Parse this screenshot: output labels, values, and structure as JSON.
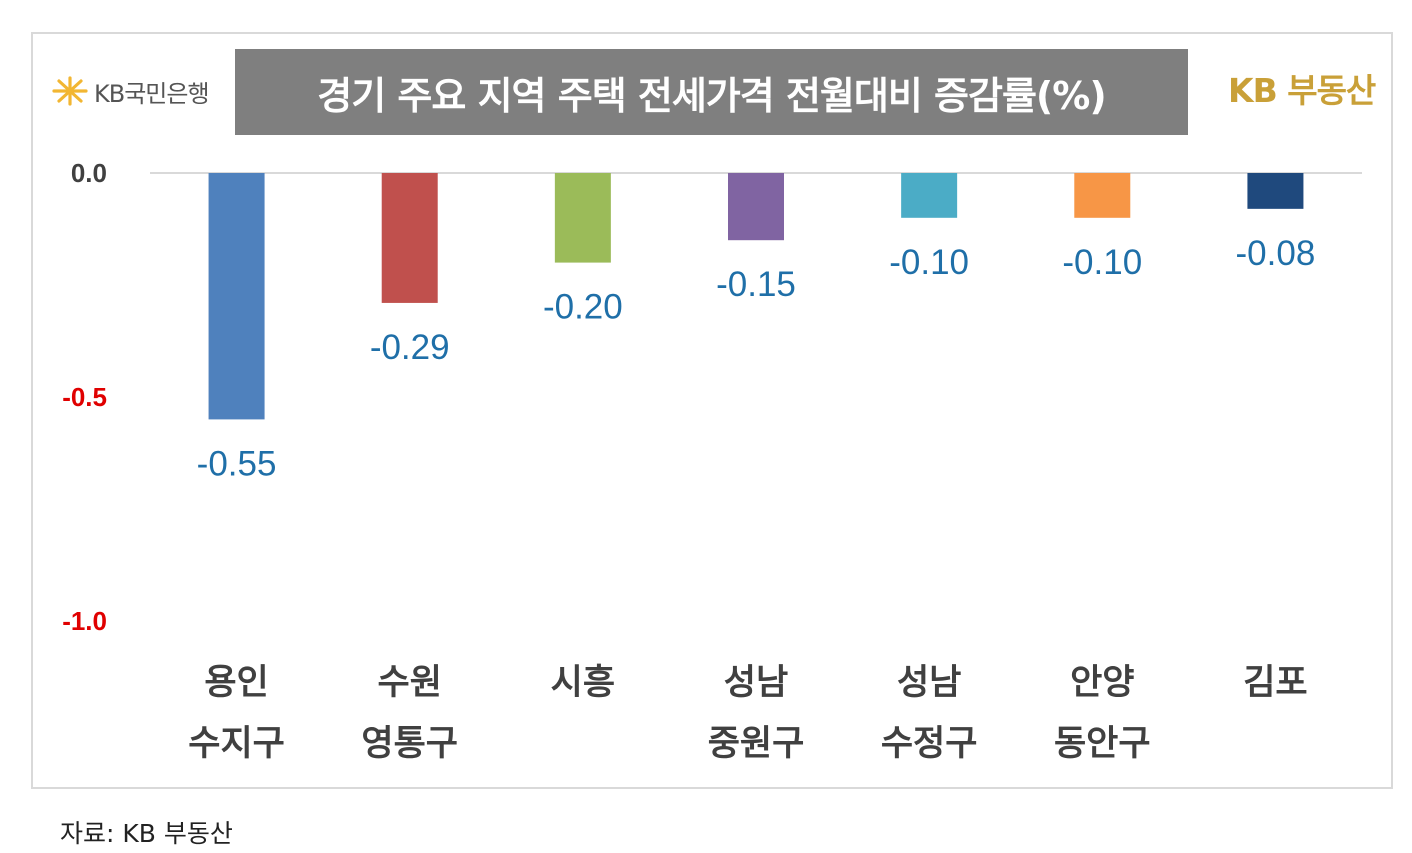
{
  "header": {
    "bank_logo_text": "KB국민은행",
    "title": "경기 주요 지역 주택 전세가격 전월대비 증감률(%)",
    "realty_logo_text": "KB 부동산"
  },
  "chart_data": {
    "type": "bar",
    "title": "경기 주요 지역 주택 전세가격 전월대비 증감률(%)",
    "categories": [
      [
        "용인",
        "수지구"
      ],
      [
        "수원",
        "영통구"
      ],
      [
        "시흥"
      ],
      [
        "성남",
        "중원구"
      ],
      [
        "성남",
        "수정구"
      ],
      [
        "안양",
        "동안구"
      ],
      [
        "김포"
      ]
    ],
    "values": [
      -0.55,
      -0.29,
      -0.2,
      -0.15,
      -0.1,
      -0.1,
      -0.08
    ],
    "value_labels": [
      "-0.55",
      "-0.29",
      "-0.20",
      "-0.15",
      "-0.10",
      "-0.10",
      "-0.08"
    ],
    "colors": [
      "#4f81bd",
      "#c0504d",
      "#9bbb59",
      "#8064a2",
      "#4bacc6",
      "#f79646",
      "#1f497d"
    ],
    "ylim": [
      -1.0,
      0.0
    ],
    "yticks": [
      {
        "value": 0.0,
        "label": "0.0",
        "color": "#404040"
      },
      {
        "value": -0.5,
        "label": "-0.5",
        "color": "#e00000"
      },
      {
        "value": -1.0,
        "label": "-1.0",
        "color": "#e00000"
      }
    ],
    "label_color": "#1f6fa8",
    "grid": false,
    "legend": "none"
  },
  "footer": {
    "source": "자료: KB 부동산"
  }
}
